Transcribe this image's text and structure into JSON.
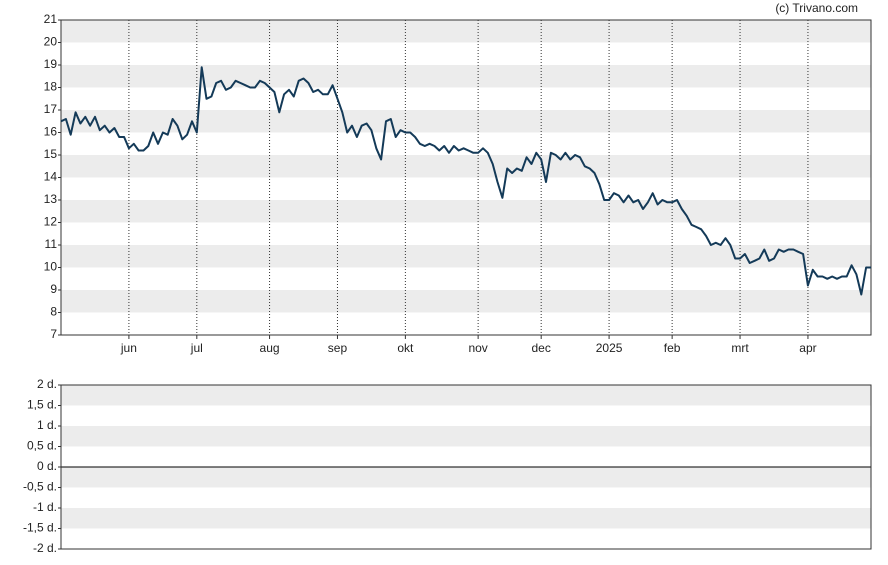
{
  "chart_data": [
    {
      "type": "line",
      "attribution": "(c) Trivano.com",
      "series": [
        {
          "color": "#143a58",
          "values": [
            16.5,
            16.6,
            15.9,
            16.9,
            16.4,
            16.7,
            16.3,
            16.7,
            16.1,
            16.3,
            16.0,
            16.2,
            15.8,
            15.8,
            15.3,
            15.5,
            15.2,
            15.2,
            15.4,
            16.0,
            15.5,
            16.0,
            15.9,
            16.6,
            16.3,
            15.7,
            15.9,
            16.5,
            16.0,
            18.9,
            17.5,
            17.6,
            18.2,
            18.3,
            17.9,
            18.0,
            18.3,
            18.2,
            18.1,
            18.0,
            18.0,
            18.3,
            18.2,
            18.0,
            17.8,
            16.9,
            17.7,
            17.9,
            17.6,
            18.3,
            18.4,
            18.2,
            17.8,
            17.9,
            17.7,
            17.7,
            18.1,
            17.5,
            16.9,
            16.0,
            16.3,
            15.8,
            16.3,
            16.4,
            16.1,
            15.3,
            14.8,
            16.5,
            16.6,
            15.8,
            16.1,
            16.0,
            16.0,
            15.8,
            15.5,
            15.4,
            15.5,
            15.4,
            15.2,
            15.4,
            15.1,
            15.4,
            15.2,
            15.3,
            15.2,
            15.1,
            15.1,
            15.3,
            15.1,
            14.6,
            13.8,
            13.1,
            14.4,
            14.2,
            14.4,
            14.3,
            14.9,
            14.6,
            15.1,
            14.8,
            13.8,
            15.1,
            15.0,
            14.8,
            15.1,
            14.8,
            15.0,
            14.9,
            14.5,
            14.4,
            14.2,
            13.7,
            13.0,
            13.0,
            13.3,
            13.2,
            12.9,
            13.2,
            12.9,
            13.0,
            12.6,
            12.9,
            13.3,
            12.8,
            13.0,
            12.9,
            12.9,
            13.0,
            12.6,
            12.3,
            11.9,
            11.8,
            11.7,
            11.4,
            11.0,
            11.1,
            11.0,
            11.3,
            11.0,
            10.4,
            10.4,
            10.6,
            10.2,
            10.3,
            10.4,
            10.8,
            10.3,
            10.4,
            10.8,
            10.7,
            10.8,
            10.8,
            10.7,
            10.6,
            9.2,
            9.9,
            9.6,
            9.6,
            9.5,
            9.6,
            9.5,
            9.6,
            9.6,
            10.1,
            9.7,
            8.8,
            10.0,
            10.0
          ]
        }
      ],
      "xlim": [
        0,
        167
      ],
      "xticks": [
        {
          "value": 14,
          "label": "jun"
        },
        {
          "value": 28,
          "label": "jul"
        },
        {
          "value": 43,
          "label": "aug"
        },
        {
          "value": 57,
          "label": "sep"
        },
        {
          "value": 71,
          "label": "okt"
        },
        {
          "value": 86,
          "label": "nov"
        },
        {
          "value": 99,
          "label": "dec"
        },
        {
          "value": 113,
          "label": "2025"
        },
        {
          "value": 126,
          "label": "feb"
        },
        {
          "value": 140,
          "label": "mrt"
        },
        {
          "value": 154,
          "label": "apr"
        }
      ],
      "ylim": [
        7,
        21
      ],
      "yticks": [
        7,
        8,
        9,
        10,
        11,
        12,
        13,
        14,
        15,
        16,
        17,
        18,
        19,
        20,
        21
      ],
      "grid": true
    },
    {
      "type": "line",
      "series": [],
      "ylim": [
        -2,
        2
      ],
      "yticks": [
        {
          "value": -2,
          "label": "-2 d."
        },
        {
          "value": -1.5,
          "label": "-1,5 d."
        },
        {
          "value": -1,
          "label": "-1 d."
        },
        {
          "value": -0.5,
          "label": "-0,5 d."
        },
        {
          "value": 0,
          "label": "0 d."
        },
        {
          "value": 0.5,
          "label": "0,5 d."
        },
        {
          "value": 1,
          "label": "1 d."
        },
        {
          "value": 1.5,
          "label": "1,5 d."
        },
        {
          "value": 2,
          "label": "2 d."
        }
      ],
      "grid": true
    }
  ]
}
